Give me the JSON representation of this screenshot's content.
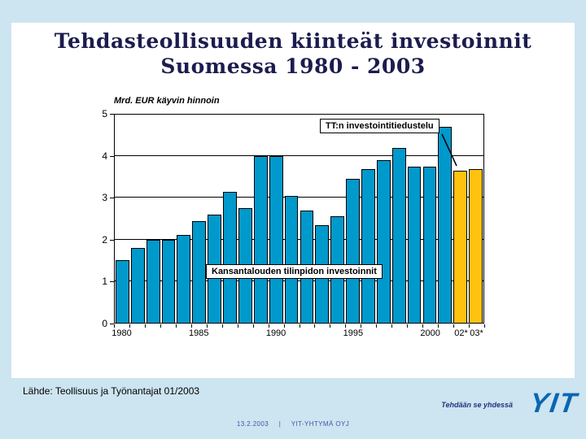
{
  "slide": {
    "title_line1": "Tehdasteollisuuden kiinteät investoinnit",
    "title_line2": "Suomessa 1980 - 2003",
    "source": "Lähde: Teollisuus ja Työnantajat 01/2003",
    "tagline": "Tehdään se yhdessä",
    "logo_text": "YIT",
    "footer_date": "13.2.2003",
    "footer_separator": "|",
    "footer_company": "YIT-YHTYMÄ OYJ",
    "colors": {
      "background": "#cde4f1",
      "title": "#1c1c4e",
      "logo_blue": "#0a66b2"
    }
  },
  "chart_data": {
    "type": "bar",
    "title": "",
    "ylabel": "Mrd. EUR käyvin hinnoin",
    "xlabel": "",
    "ylim": [
      0,
      5
    ],
    "yticks": [
      0,
      1,
      2,
      3,
      4,
      5
    ],
    "gridlines": [
      1,
      2,
      3,
      4
    ],
    "grid": true,
    "legend_position": "none",
    "categories": [
      "1980",
      "1981",
      "1982",
      "1983",
      "1984",
      "1985",
      "1986",
      "1987",
      "1988",
      "1989",
      "1990",
      "1991",
      "1992",
      "1993",
      "1994",
      "1995",
      "1996",
      "1997",
      "1998",
      "1999",
      "2000",
      "2001",
      "2002",
      "2003"
    ],
    "values": [
      1.5,
      1.8,
      2.0,
      2.0,
      2.1,
      2.45,
      2.6,
      3.15,
      2.75,
      4.0,
      4.0,
      3.05,
      2.7,
      2.35,
      2.55,
      3.45,
      3.7,
      3.9,
      4.2,
      3.75,
      3.75,
      4.7,
      3.65,
      3.7
    ],
    "xtick_labels": {
      "0": "1980",
      "5": "1985",
      "10": "1990",
      "15": "1995",
      "20": "2000",
      "22": "02*",
      "23": "03*"
    },
    "colors": {
      "bar": "#0099cc",
      "forecast_bar": "#ffc20e"
    },
    "forecast_start_index": 22,
    "annotations": [
      {
        "text": "TT:n investointitiedustelu",
        "points_to": "02*-03* forecast bars"
      },
      {
        "text": "Kansantalouden tilinpidon investoinnit"
      }
    ]
  }
}
